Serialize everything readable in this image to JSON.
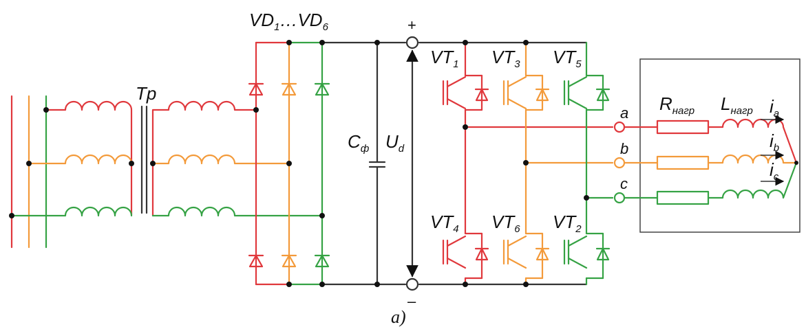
{
  "colors": {
    "phase_a": "#e0383c",
    "phase_b": "#f39a3a",
    "phase_c": "#35a244",
    "wire": "#333333"
  },
  "labels": {
    "transformer": "Tp",
    "diodes_main": "VD",
    "diodes_sub1": "1",
    "diodes_sep": "…VD",
    "diodes_sub2": "6",
    "plus": "+",
    "minus": "–",
    "cap_main": "C",
    "cap_sub": "ф",
    "ud_main": "U",
    "ud_sub": "d",
    "vt": "VT",
    "vt1": "1",
    "vt3": "3",
    "vt5": "5",
    "vt4": "4",
    "vt6": "6",
    "vt2": "2",
    "phase_a": "a",
    "phase_b": "b",
    "phase_c": "c",
    "r_main": "R",
    "r_sub": "нагр",
    "l_main": "L",
    "l_sub": "нагр",
    "i": "i",
    "ia_sub": "a",
    "ib_sub": "b",
    "ic_sub": "c",
    "caption": "а)"
  }
}
